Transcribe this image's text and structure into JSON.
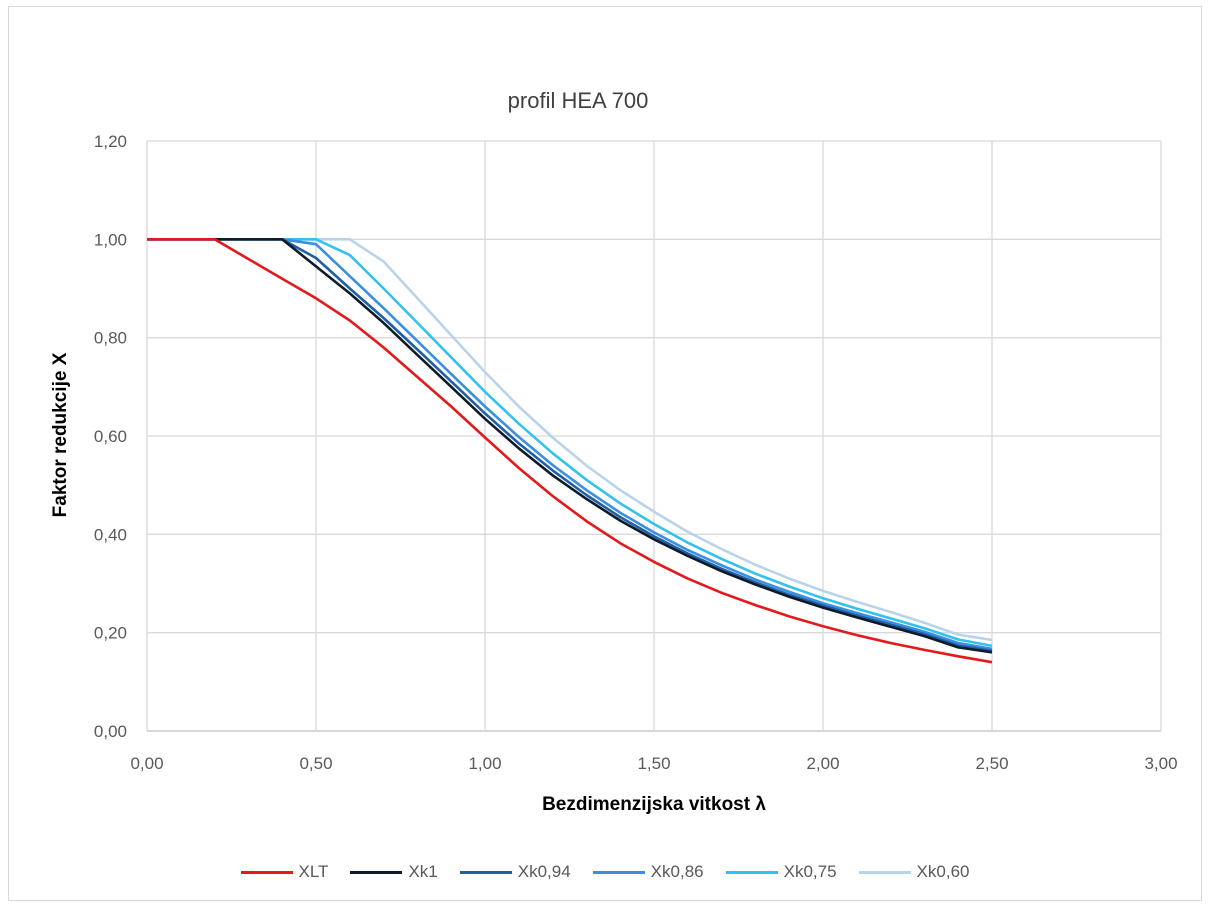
{
  "chart_data": {
    "type": "line",
    "title": "profil HEA 700",
    "xlabel": "Bezdimenzijska vitkost λ",
    "ylabel": "Faktor redukcije X",
    "xlim": [
      0,
      3
    ],
    "ylim": [
      0,
      1.2
    ],
    "x_ticks": [
      "0,00",
      "0,50",
      "1,00",
      "1,50",
      "2,00",
      "2,50",
      "3,00"
    ],
    "y_ticks": [
      "0,00",
      "0,20",
      "0,40",
      "0,60",
      "0,80",
      "1,00",
      "1,20"
    ],
    "grid": true,
    "legend_position": "bottom",
    "x": [
      0,
      0.1,
      0.2,
      0.3,
      0.4,
      0.5,
      0.6,
      0.7,
      0.8,
      0.9,
      1.0,
      1.1,
      1.2,
      1.3,
      1.4,
      1.5,
      1.6,
      1.7,
      1.8,
      1.9,
      2.0,
      2.1,
      2.2,
      2.3,
      2.4,
      2.5
    ],
    "series": [
      {
        "name": "XLT",
        "color": "#e31a1c",
        "values": [
          1.0,
          1.0,
          1.0,
          0.96,
          0.92,
          0.88,
          0.835,
          0.78,
          0.72,
          0.66,
          0.597,
          0.535,
          0.478,
          0.427,
          0.382,
          0.344,
          0.31,
          0.281,
          0.256,
          0.233,
          0.213,
          0.195,
          0.179,
          0.165,
          0.152,
          0.14
        ]
      },
      {
        "name": "Xk1",
        "color": "#0d1b2a",
        "values": [
          1.0,
          1.0,
          1.0,
          1.0,
          1.0,
          0.945,
          0.89,
          0.83,
          0.765,
          0.7,
          0.635,
          0.575,
          0.52,
          0.472,
          0.428,
          0.39,
          0.356,
          0.325,
          0.298,
          0.273,
          0.251,
          0.231,
          0.212,
          0.193,
          0.17,
          0.16
        ]
      },
      {
        "name": "Xk0,94",
        "color": "#1f5fa8",
        "values": [
          1.0,
          1.0,
          1.0,
          1.0,
          1.0,
          0.962,
          0.9,
          0.84,
          0.776,
          0.711,
          0.646,
          0.585,
          0.53,
          0.48,
          0.435,
          0.396,
          0.361,
          0.33,
          0.302,
          0.277,
          0.255,
          0.235,
          0.216,
          0.197,
          0.174,
          0.163
        ]
      },
      {
        "name": "Xk0,86",
        "color": "#3a8fe0",
        "values": [
          1.0,
          1.0,
          1.0,
          1.0,
          1.0,
          0.99,
          0.925,
          0.86,
          0.793,
          0.726,
          0.66,
          0.598,
          0.541,
          0.49,
          0.444,
          0.404,
          0.368,
          0.337,
          0.308,
          0.283,
          0.26,
          0.24,
          0.221,
          0.202,
          0.179,
          0.167
        ]
      },
      {
        "name": "Xk0,75",
        "color": "#33c1ee",
        "values": [
          1.0,
          1.0,
          1.0,
          1.0,
          1.0,
          1.0,
          0.968,
          0.9,
          0.83,
          0.76,
          0.69,
          0.625,
          0.565,
          0.511,
          0.463,
          0.421,
          0.383,
          0.35,
          0.32,
          0.294,
          0.27,
          0.249,
          0.229,
          0.209,
          0.186,
          0.173
        ]
      },
      {
        "name": "Xk0,60",
        "color": "#b9d3ea",
        "values": [
          1.0,
          1.0,
          1.0,
          1.0,
          1.0,
          1.0,
          1.0,
          0.955,
          0.88,
          0.805,
          0.73,
          0.66,
          0.597,
          0.54,
          0.49,
          0.446,
          0.405,
          0.37,
          0.338,
          0.31,
          0.285,
          0.263,
          0.242,
          0.22,
          0.196,
          0.185
        ]
      }
    ]
  }
}
